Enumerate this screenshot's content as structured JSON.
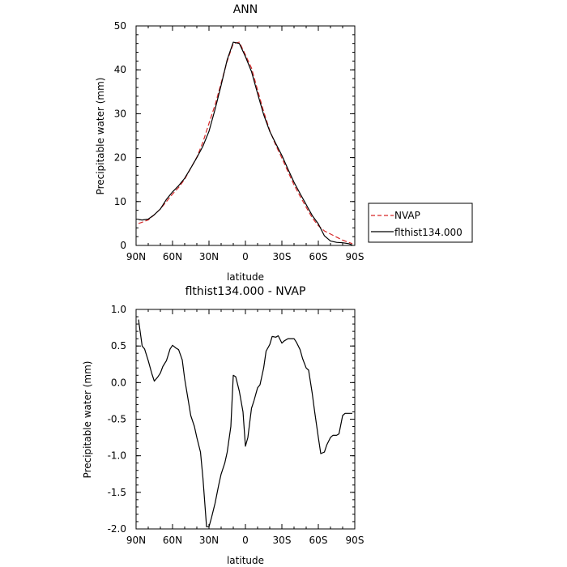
{
  "chart_data": [
    {
      "type": "line",
      "title": "ANN",
      "xlabel": "latitude",
      "ylabel": "Precipitable water (mm)",
      "xlim": [
        90,
        -90
      ],
      "ylim": [
        0,
        50
      ],
      "x_unit": "degrees latitude (positive = N)",
      "xticks": [
        {
          "value": 90,
          "label": "90N"
        },
        {
          "value": 60,
          "label": "60N"
        },
        {
          "value": 30,
          "label": "30N"
        },
        {
          "value": 0,
          "label": "0"
        },
        {
          "value": -30,
          "label": "30S"
        },
        {
          "value": -60,
          "label": "60S"
        },
        {
          "value": -90,
          "label": "90S"
        }
      ],
      "yticks": [
        0,
        10,
        20,
        30,
        40,
        50
      ],
      "grid": false,
      "legend": "outside-right",
      "series": [
        {
          "name": "NVAP",
          "color": "#d62728",
          "dash": "dashed",
          "x": [
            88,
            85,
            80,
            75,
            70,
            65,
            60,
            55,
            50,
            45,
            40,
            35,
            30,
            25,
            20,
            15,
            10,
            5,
            0,
            -5,
            -10,
            -15,
            -20,
            -25,
            -30,
            -35,
            -40,
            -45,
            -50,
            -55,
            -60,
            -65,
            -70,
            -75,
            -80,
            -85,
            -88
          ],
          "y": [
            5.0,
            5.3,
            5.8,
            7.0,
            8.3,
            10.0,
            11.7,
            13.2,
            15.1,
            17.6,
            20.1,
            23.5,
            27.8,
            32.0,
            37.0,
            42.0,
            46.0,
            46.3,
            43.4,
            40.4,
            35.4,
            30.5,
            26.2,
            22.8,
            19.9,
            16.8,
            13.8,
            11.2,
            8.7,
            6.3,
            4.5,
            3.3,
            2.6,
            1.9,
            1.2,
            0.7,
            0.4
          ]
        },
        {
          "name": "flthist134.000",
          "color": "#000000",
          "dash": "solid",
          "x": [
            88,
            85,
            80,
            75,
            70,
            65,
            60,
            55,
            50,
            45,
            40,
            35,
            30,
            25,
            20,
            15,
            10,
            5,
            0,
            -5,
            -10,
            -15,
            -20,
            -25,
            -30,
            -35,
            -40,
            -45,
            -50,
            -55,
            -60,
            -65,
            -70,
            -75,
            -80,
            -85,
            -88
          ],
          "y": [
            5.9,
            5.8,
            6.0,
            7.0,
            8.3,
            10.5,
            12.2,
            13.6,
            15.3,
            17.6,
            20.0,
            22.6,
            26.0,
            31.0,
            36.5,
            42.3,
            46.3,
            46.0,
            43.0,
            39.6,
            34.6,
            29.8,
            26.0,
            23.2,
            20.5,
            17.4,
            14.4,
            11.8,
            9.3,
            6.8,
            4.9,
            2.2,
            1.0,
            0.7,
            0.6,
            0.4,
            0.1
          ]
        }
      ]
    },
    {
      "type": "line",
      "title": "flthist134.000 - NVAP",
      "xlabel": "latitude",
      "ylabel": "Precipitable water (mm)",
      "xlim": [
        90,
        -90
      ],
      "ylim": [
        -2.0,
        1.0
      ],
      "x_unit": "degrees latitude (positive = N)",
      "xticks": [
        {
          "value": 90,
          "label": "90N"
        },
        {
          "value": 60,
          "label": "60N"
        },
        {
          "value": 30,
          "label": "30N"
        },
        {
          "value": 0,
          "label": "0"
        },
        {
          "value": -30,
          "label": "30S"
        },
        {
          "value": -60,
          "label": "60S"
        },
        {
          "value": -90,
          "label": "90S"
        }
      ],
      "yticks": [
        -2.0,
        -1.5,
        -1.0,
        -0.5,
        0.0,
        0.5,
        1.0
      ],
      "grid": false,
      "legend": "none",
      "series": [
        {
          "color": "#000000",
          "dash": "solid",
          "x": [
            88,
            85,
            83,
            80,
            77,
            75,
            72,
            70,
            68,
            65,
            62,
            60,
            57,
            55,
            52,
            50,
            47,
            45,
            42,
            40,
            37,
            35,
            32,
            30,
            28,
            25,
            22,
            20,
            17,
            15,
            12,
            10,
            8,
            5,
            2,
            0,
            -2,
            -5,
            -7,
            -10,
            -12,
            -15,
            -17,
            -20,
            -22,
            -25,
            -27,
            -30,
            -32,
            -35,
            -37,
            -40,
            -42,
            -45,
            -47,
            -50,
            -52,
            -55,
            -57,
            -60,
            -62,
            -65,
            -67,
            -70,
            -72,
            -75,
            -77,
            -80,
            -82,
            -85,
            -87,
            -88
          ],
          "y": [
            0.86,
            0.5,
            0.46,
            0.3,
            0.12,
            0.02,
            0.08,
            0.13,
            0.22,
            0.3,
            0.46,
            0.51,
            0.47,
            0.45,
            0.31,
            0.05,
            -0.25,
            -0.45,
            -0.6,
            -0.75,
            -0.95,
            -1.3,
            -1.97,
            -1.97,
            -1.85,
            -1.65,
            -1.4,
            -1.25,
            -1.1,
            -0.95,
            -0.6,
            0.1,
            0.08,
            -0.12,
            -0.4,
            -0.87,
            -0.75,
            -0.35,
            -0.25,
            -0.07,
            -0.03,
            0.2,
            0.43,
            0.52,
            0.63,
            0.62,
            0.64,
            0.54,
            0.57,
            0.6,
            0.6,
            0.6,
            0.55,
            0.45,
            0.33,
            0.2,
            0.17,
            -0.15,
            -0.4,
            -0.75,
            -0.97,
            -0.95,
            -0.85,
            -0.75,
            -0.72,
            -0.72,
            -0.7,
            -0.45,
            -0.42,
            -0.42,
            -0.42,
            -0.42
          ]
        }
      ]
    }
  ]
}
